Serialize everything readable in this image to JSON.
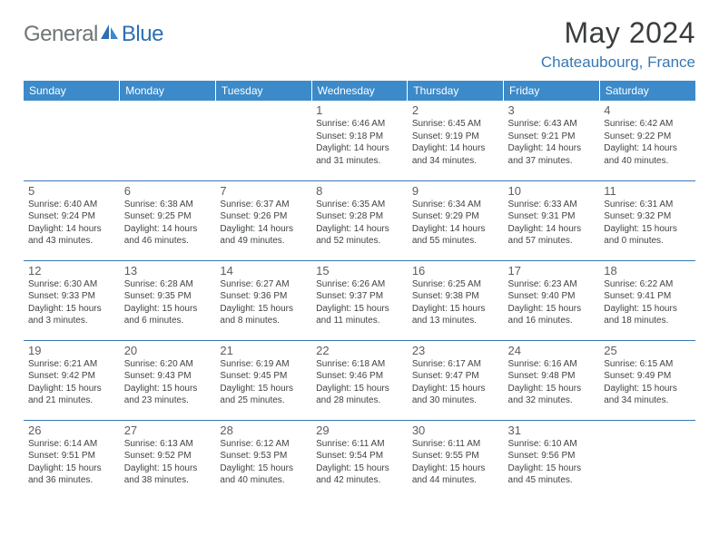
{
  "logo": {
    "general": "General",
    "blue": "Blue"
  },
  "title": "May 2024",
  "location": "Chateaubourg, France",
  "colors": {
    "header_bg": "#3c8ac9",
    "header_text": "#ffffff",
    "border": "#3777b5",
    "logo_gray": "#6f7577",
    "logo_blue": "#2d6fb3",
    "location_color": "#3777b5"
  },
  "day_headers": [
    "Sunday",
    "Monday",
    "Tuesday",
    "Wednesday",
    "Thursday",
    "Friday",
    "Saturday"
  ],
  "weeks": [
    [
      {
        "n": "",
        "lines": [
          "",
          "",
          "",
          ""
        ]
      },
      {
        "n": "",
        "lines": [
          "",
          "",
          "",
          ""
        ]
      },
      {
        "n": "",
        "lines": [
          "",
          "",
          "",
          ""
        ]
      },
      {
        "n": "1",
        "lines": [
          "Sunrise: 6:46 AM",
          "Sunset: 9:18 PM",
          "Daylight: 14 hours",
          "and 31 minutes."
        ]
      },
      {
        "n": "2",
        "lines": [
          "Sunrise: 6:45 AM",
          "Sunset: 9:19 PM",
          "Daylight: 14 hours",
          "and 34 minutes."
        ]
      },
      {
        "n": "3",
        "lines": [
          "Sunrise: 6:43 AM",
          "Sunset: 9:21 PM",
          "Daylight: 14 hours",
          "and 37 minutes."
        ]
      },
      {
        "n": "4",
        "lines": [
          "Sunrise: 6:42 AM",
          "Sunset: 9:22 PM",
          "Daylight: 14 hours",
          "and 40 minutes."
        ]
      }
    ],
    [
      {
        "n": "5",
        "lines": [
          "Sunrise: 6:40 AM",
          "Sunset: 9:24 PM",
          "Daylight: 14 hours",
          "and 43 minutes."
        ]
      },
      {
        "n": "6",
        "lines": [
          "Sunrise: 6:38 AM",
          "Sunset: 9:25 PM",
          "Daylight: 14 hours",
          "and 46 minutes."
        ]
      },
      {
        "n": "7",
        "lines": [
          "Sunrise: 6:37 AM",
          "Sunset: 9:26 PM",
          "Daylight: 14 hours",
          "and 49 minutes."
        ]
      },
      {
        "n": "8",
        "lines": [
          "Sunrise: 6:35 AM",
          "Sunset: 9:28 PM",
          "Daylight: 14 hours",
          "and 52 minutes."
        ]
      },
      {
        "n": "9",
        "lines": [
          "Sunrise: 6:34 AM",
          "Sunset: 9:29 PM",
          "Daylight: 14 hours",
          "and 55 minutes."
        ]
      },
      {
        "n": "10",
        "lines": [
          "Sunrise: 6:33 AM",
          "Sunset: 9:31 PM",
          "Daylight: 14 hours",
          "and 57 minutes."
        ]
      },
      {
        "n": "11",
        "lines": [
          "Sunrise: 6:31 AM",
          "Sunset: 9:32 PM",
          "Daylight: 15 hours",
          "and 0 minutes."
        ]
      }
    ],
    [
      {
        "n": "12",
        "lines": [
          "Sunrise: 6:30 AM",
          "Sunset: 9:33 PM",
          "Daylight: 15 hours",
          "and 3 minutes."
        ]
      },
      {
        "n": "13",
        "lines": [
          "Sunrise: 6:28 AM",
          "Sunset: 9:35 PM",
          "Daylight: 15 hours",
          "and 6 minutes."
        ]
      },
      {
        "n": "14",
        "lines": [
          "Sunrise: 6:27 AM",
          "Sunset: 9:36 PM",
          "Daylight: 15 hours",
          "and 8 minutes."
        ]
      },
      {
        "n": "15",
        "lines": [
          "Sunrise: 6:26 AM",
          "Sunset: 9:37 PM",
          "Daylight: 15 hours",
          "and 11 minutes."
        ]
      },
      {
        "n": "16",
        "lines": [
          "Sunrise: 6:25 AM",
          "Sunset: 9:38 PM",
          "Daylight: 15 hours",
          "and 13 minutes."
        ]
      },
      {
        "n": "17",
        "lines": [
          "Sunrise: 6:23 AM",
          "Sunset: 9:40 PM",
          "Daylight: 15 hours",
          "and 16 minutes."
        ]
      },
      {
        "n": "18",
        "lines": [
          "Sunrise: 6:22 AM",
          "Sunset: 9:41 PM",
          "Daylight: 15 hours",
          "and 18 minutes."
        ]
      }
    ],
    [
      {
        "n": "19",
        "lines": [
          "Sunrise: 6:21 AM",
          "Sunset: 9:42 PM",
          "Daylight: 15 hours",
          "and 21 minutes."
        ]
      },
      {
        "n": "20",
        "lines": [
          "Sunrise: 6:20 AM",
          "Sunset: 9:43 PM",
          "Daylight: 15 hours",
          "and 23 minutes."
        ]
      },
      {
        "n": "21",
        "lines": [
          "Sunrise: 6:19 AM",
          "Sunset: 9:45 PM",
          "Daylight: 15 hours",
          "and 25 minutes."
        ]
      },
      {
        "n": "22",
        "lines": [
          "Sunrise: 6:18 AM",
          "Sunset: 9:46 PM",
          "Daylight: 15 hours",
          "and 28 minutes."
        ]
      },
      {
        "n": "23",
        "lines": [
          "Sunrise: 6:17 AM",
          "Sunset: 9:47 PM",
          "Daylight: 15 hours",
          "and 30 minutes."
        ]
      },
      {
        "n": "24",
        "lines": [
          "Sunrise: 6:16 AM",
          "Sunset: 9:48 PM",
          "Daylight: 15 hours",
          "and 32 minutes."
        ]
      },
      {
        "n": "25",
        "lines": [
          "Sunrise: 6:15 AM",
          "Sunset: 9:49 PM",
          "Daylight: 15 hours",
          "and 34 minutes."
        ]
      }
    ],
    [
      {
        "n": "26",
        "lines": [
          "Sunrise: 6:14 AM",
          "Sunset: 9:51 PM",
          "Daylight: 15 hours",
          "and 36 minutes."
        ]
      },
      {
        "n": "27",
        "lines": [
          "Sunrise: 6:13 AM",
          "Sunset: 9:52 PM",
          "Daylight: 15 hours",
          "and 38 minutes."
        ]
      },
      {
        "n": "28",
        "lines": [
          "Sunrise: 6:12 AM",
          "Sunset: 9:53 PM",
          "Daylight: 15 hours",
          "and 40 minutes."
        ]
      },
      {
        "n": "29",
        "lines": [
          "Sunrise: 6:11 AM",
          "Sunset: 9:54 PM",
          "Daylight: 15 hours",
          "and 42 minutes."
        ]
      },
      {
        "n": "30",
        "lines": [
          "Sunrise: 6:11 AM",
          "Sunset: 9:55 PM",
          "Daylight: 15 hours",
          "and 44 minutes."
        ]
      },
      {
        "n": "31",
        "lines": [
          "Sunrise: 6:10 AM",
          "Sunset: 9:56 PM",
          "Daylight: 15 hours",
          "and 45 minutes."
        ]
      },
      {
        "n": "",
        "lines": [
          "",
          "",
          "",
          ""
        ]
      }
    ]
  ]
}
